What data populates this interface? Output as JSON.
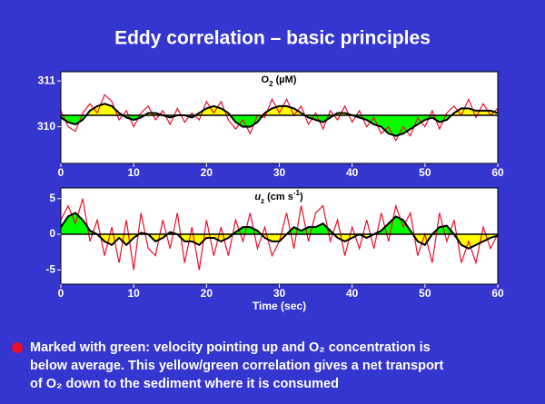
{
  "title": "Eddy correlation – basic principles",
  "bullet": [
    "Marked with green:  velocity pointing up and O₂ concentration is",
    "below average. This yellow/green  correlation gives a net transport",
    "of O₂ down to the sediment where it is consumed"
  ],
  "chart_data": [
    {
      "type": "line",
      "label": [
        "O",
        "2",
        "  (µM)"
      ],
      "x": [
        0,
        1,
        2,
        3,
        4,
        5,
        6,
        7,
        8,
        9,
        10,
        11,
        12,
        13,
        14,
        15,
        16,
        17,
        18,
        19,
        20,
        21,
        22,
        23,
        24,
        25,
        26,
        27,
        28,
        29,
        30,
        31,
        32,
        33,
        34,
        35,
        36,
        37,
        38,
        39,
        40,
        41,
        42,
        43,
        44,
        45,
        46,
        47,
        48,
        49,
        50,
        51,
        52,
        53,
        54,
        55,
        56,
        57,
        58,
        59,
        60
      ],
      "series": [
        {
          "color": "#e8102a",
          "values": [
            310.35,
            310.0,
            309.9,
            310.3,
            310.5,
            310.3,
            310.7,
            310.55,
            310.15,
            310.35,
            310.0,
            310.3,
            310.45,
            310.15,
            310.35,
            310.05,
            310.4,
            310.1,
            310.3,
            310.15,
            310.55,
            310.3,
            310.55,
            310.15,
            309.95,
            310.15,
            309.85,
            310.25,
            310.2,
            310.6,
            310.3,
            310.6,
            310.25,
            310.45,
            310.05,
            310.3,
            309.95,
            310.35,
            310.15,
            310.45,
            310.1,
            310.35,
            310.0,
            310.2,
            309.85,
            310.0,
            309.7,
            310.0,
            309.8,
            310.2,
            310.0,
            310.35,
            309.95,
            310.3,
            310.45,
            310.25,
            310.6,
            310.2,
            310.5,
            310.25,
            310.4
          ]
        },
        {
          "color": "#000000",
          "values": [
            310.2,
            310.1,
            310.05,
            310.15,
            310.35,
            310.45,
            310.5,
            310.45,
            310.3,
            310.2,
            310.15,
            310.2,
            310.3,
            310.3,
            310.25,
            310.2,
            310.25,
            310.25,
            310.2,
            310.3,
            310.4,
            310.45,
            310.4,
            310.3,
            310.1,
            310.0,
            310.0,
            310.1,
            310.3,
            310.4,
            310.45,
            310.45,
            310.4,
            310.3,
            310.2,
            310.15,
            310.1,
            310.2,
            310.3,
            310.3,
            310.25,
            310.2,
            310.15,
            310.05,
            310.0,
            309.85,
            309.8,
            309.85,
            309.95,
            310.05,
            310.15,
            310.2,
            310.1,
            310.15,
            310.3,
            310.4,
            310.4,
            310.35,
            310.35,
            310.35,
            310.3
          ]
        }
      ],
      "mean": 310.25,
      "above_color": "#ffff00",
      "below_color": "#00ff00",
      "xlim": [
        0,
        60
      ],
      "xticks": [
        0,
        10,
        20,
        30,
        40,
        50,
        60
      ],
      "ylim": [
        309.2,
        311.2
      ],
      "yticks": [
        310,
        311
      ]
    },
    {
      "type": "line",
      "label": [
        "u",
        "z",
        "  (cm s",
        "-1",
        ")"
      ],
      "xlabel": "Time  (sec)",
      "x": [
        0,
        1,
        2,
        3,
        4,
        5,
        6,
        7,
        8,
        9,
        10,
        11,
        12,
        13,
        14,
        15,
        16,
        17,
        18,
        19,
        20,
        21,
        22,
        23,
        24,
        25,
        26,
        27,
        28,
        29,
        30,
        31,
        32,
        33,
        34,
        35,
        36,
        37,
        38,
        39,
        40,
        41,
        42,
        43,
        44,
        45,
        46,
        47,
        48,
        49,
        50,
        51,
        52,
        53,
        54,
        55,
        56,
        57,
        58,
        59,
        60
      ],
      "series": [
        {
          "color": "#e8102a",
          "values": [
            2,
            4,
            1.5,
            5,
            -1,
            2,
            -3,
            1,
            -4,
            2,
            -5,
            3,
            -2,
            -3,
            2,
            -2,
            3,
            -4,
            1,
            -5,
            2,
            -3,
            1,
            -3,
            2,
            -1,
            3,
            -2,
            1,
            -3,
            -1,
            3,
            -2,
            4,
            -1,
            3,
            4,
            -1,
            2,
            -3,
            1,
            -2,
            2,
            -2,
            3,
            -1,
            4,
            1,
            3,
            -3,
            0,
            -4,
            3,
            -1,
            2,
            -4,
            -1,
            -4,
            1,
            -2,
            0
          ]
        },
        {
          "color": "#000000",
          "values": [
            1,
            2.5,
            3,
            2,
            0.5,
            0,
            -1,
            -1.5,
            -0.5,
            -1.5,
            -0.5,
            0.2,
            0,
            -1,
            -0.5,
            0.3,
            0,
            -1,
            -1,
            -1.5,
            -0.5,
            -0.5,
            -1,
            -0.5,
            0.3,
            1,
            1,
            0.5,
            -0.5,
            -1,
            -1,
            0,
            1,
            0.5,
            1,
            1,
            1.5,
            0.5,
            -0.5,
            -1,
            -0.5,
            0,
            -0.5,
            0,
            0.5,
            1.5,
            2.5,
            2,
            0.5,
            -1,
            -1.5,
            0,
            1,
            1.2,
            0,
            -1.5,
            -2,
            -1.5,
            -1,
            -0.5,
            -0.2
          ]
        }
      ],
      "mean": 0,
      "above_color": "#00ff00",
      "below_color": "#ffff00",
      "xlim": [
        0,
        60
      ],
      "xticks": [
        0,
        10,
        20,
        30,
        40,
        50,
        60
      ],
      "ylim": [
        -7,
        6.5
      ],
      "yticks": [
        -5,
        0,
        5
      ]
    }
  ]
}
